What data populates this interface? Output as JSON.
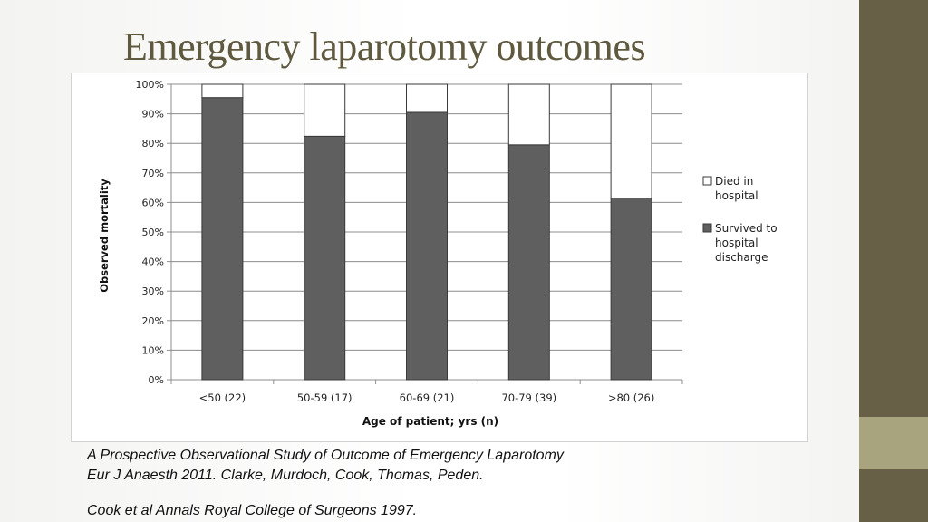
{
  "slide": {
    "title": "Emergency laparotomy outcomes",
    "colors": {
      "side_band": "#675f46",
      "side_accent": "#a8a57e",
      "title": "#5f5a3f"
    }
  },
  "chart_data": {
    "type": "bar",
    "stacked": true,
    "categories": [
      "<50 (22)",
      "50-59 (17)",
      "60-69 (21)",
      "70-79 (39)",
      ">80 (26)"
    ],
    "series": [
      {
        "name": "Survived to hospital discharge",
        "label_lines": [
          "Survived to",
          "hospital",
          "discharge"
        ],
        "color": "#5f5f5f",
        "values": [
          95.5,
          82.4,
          90.5,
          79.5,
          61.5
        ]
      },
      {
        "name": "Died in hospital",
        "label_lines": [
          "Died in",
          "hospital"
        ],
        "color": "#ffffff",
        "values": [
          4.5,
          17.6,
          9.5,
          20.5,
          38.5
        ]
      }
    ],
    "xlabel": "Age of patient; yrs (n)",
    "ylabel": "Observed mortality",
    "ylim": [
      0,
      100
    ],
    "yticks": [
      0,
      10,
      20,
      30,
      40,
      50,
      60,
      70,
      80,
      90,
      100
    ],
    "ytick_labels": [
      "0%",
      "10%",
      "20%",
      "30%",
      "40%",
      "50%",
      "60%",
      "70%",
      "80%",
      "90%",
      "100%"
    ],
    "grid": true,
    "legend_position": "right"
  },
  "captions": [
    "A Prospective Observational Study of Outcome of Emergency Laparotomy",
    "Eur J Anaesth 2011.  Clarke, Murdoch, Cook, Thomas, Peden.",
    "Cook et al  Annals Royal College of Surgeons 1997."
  ]
}
